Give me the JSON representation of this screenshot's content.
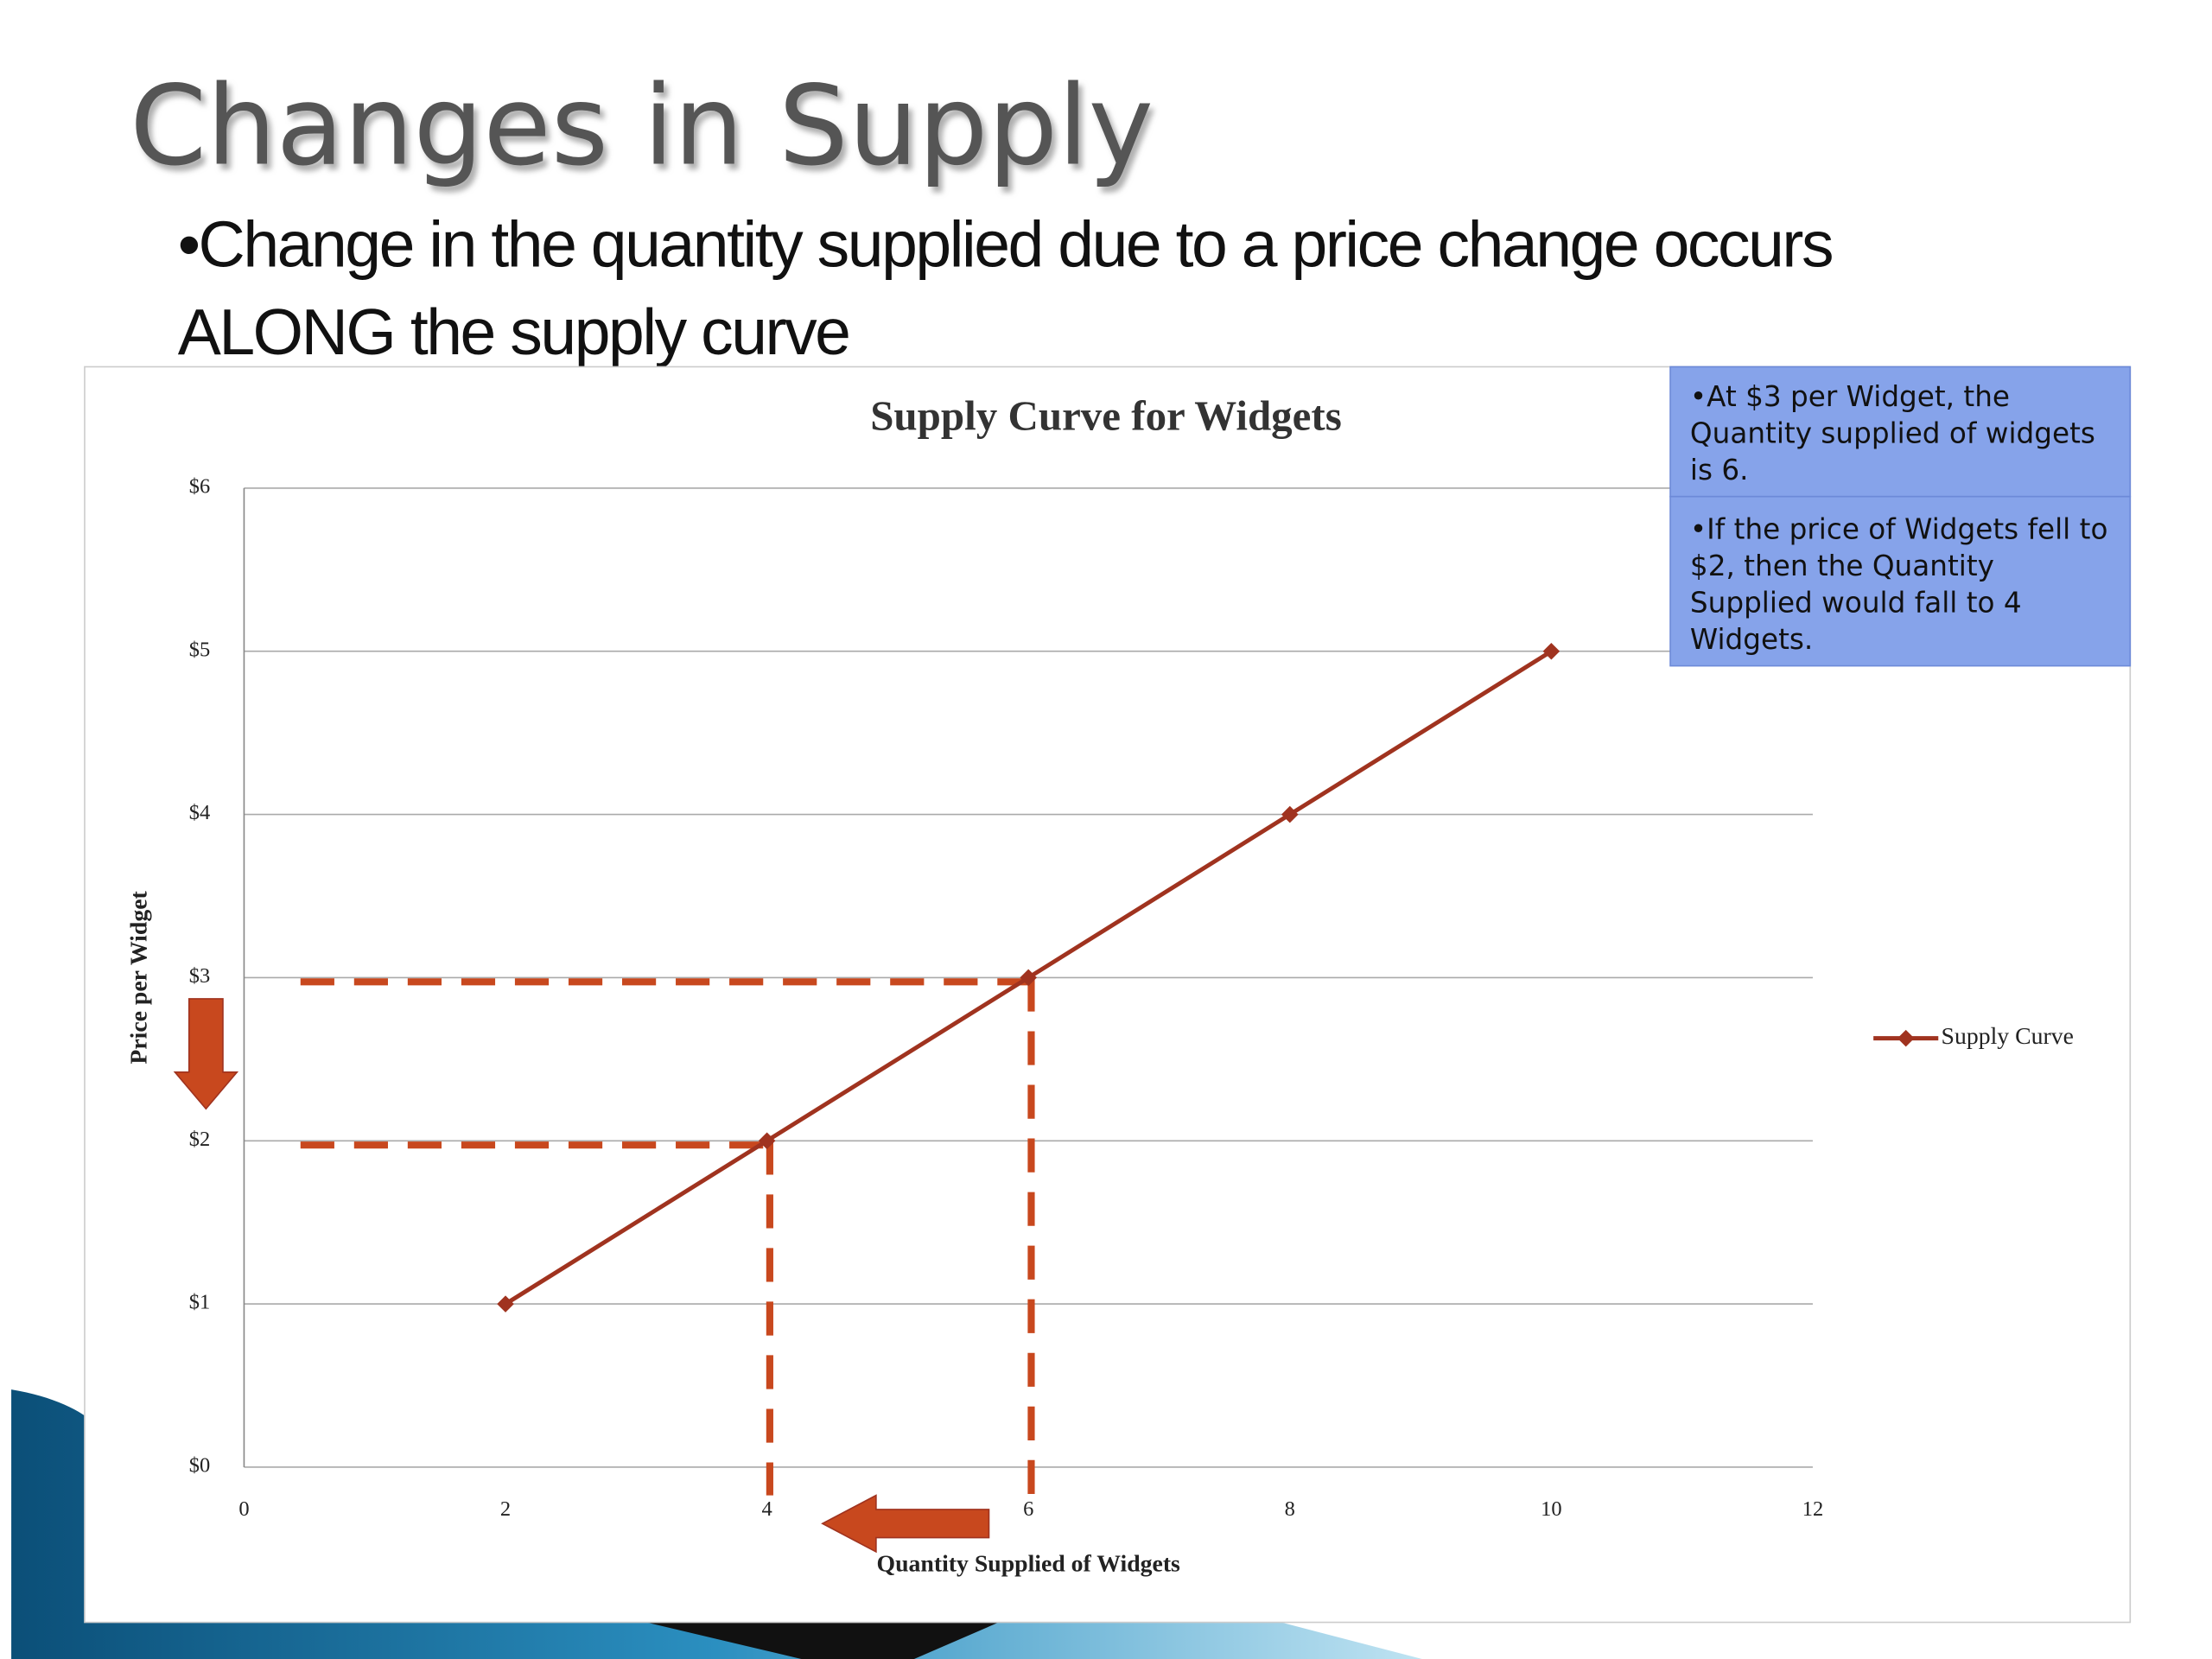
{
  "slide": {
    "title": "Changes in Supply",
    "bullet": "•Change in the quantity supplied due to a price change occurs ALONG the supply curve"
  },
  "chart_data": {
    "type": "line",
    "title": "Supply Curve for Widgets",
    "x_label": "Quantity Supplied of Widgets",
    "y_label": "Price per Widget",
    "series": [
      {
        "name": "Supply Curve",
        "color": "#a0331f",
        "x": [
          2,
          4,
          6,
          8,
          10
        ],
        "values": [
          1,
          2,
          3,
          4,
          5
        ]
      }
    ],
    "xlim": [
      0,
      12
    ],
    "xticks": [
      0,
      2,
      4,
      6,
      8,
      10,
      12
    ],
    "ylim": [
      0,
      6
    ],
    "yticks": [
      {
        "value": 0,
        "label": "$0"
      },
      {
        "value": 1,
        "label": "$1"
      },
      {
        "value": 2,
        "label": "$2"
      },
      {
        "value": 3,
        "label": "$3"
      },
      {
        "value": 4,
        "label": "$4"
      },
      {
        "value": 5,
        "label": "$5"
      },
      {
        "value": 6,
        "label": "$6"
      }
    ],
    "grid": true,
    "legend": "right",
    "annotations": [
      "•At $3 per Widget, the Quantity supplied of widgets is 6.",
      "•If the price of Widgets fell to $2, then the Quantity Supplied would fall to 4 Widgets."
    ]
  }
}
